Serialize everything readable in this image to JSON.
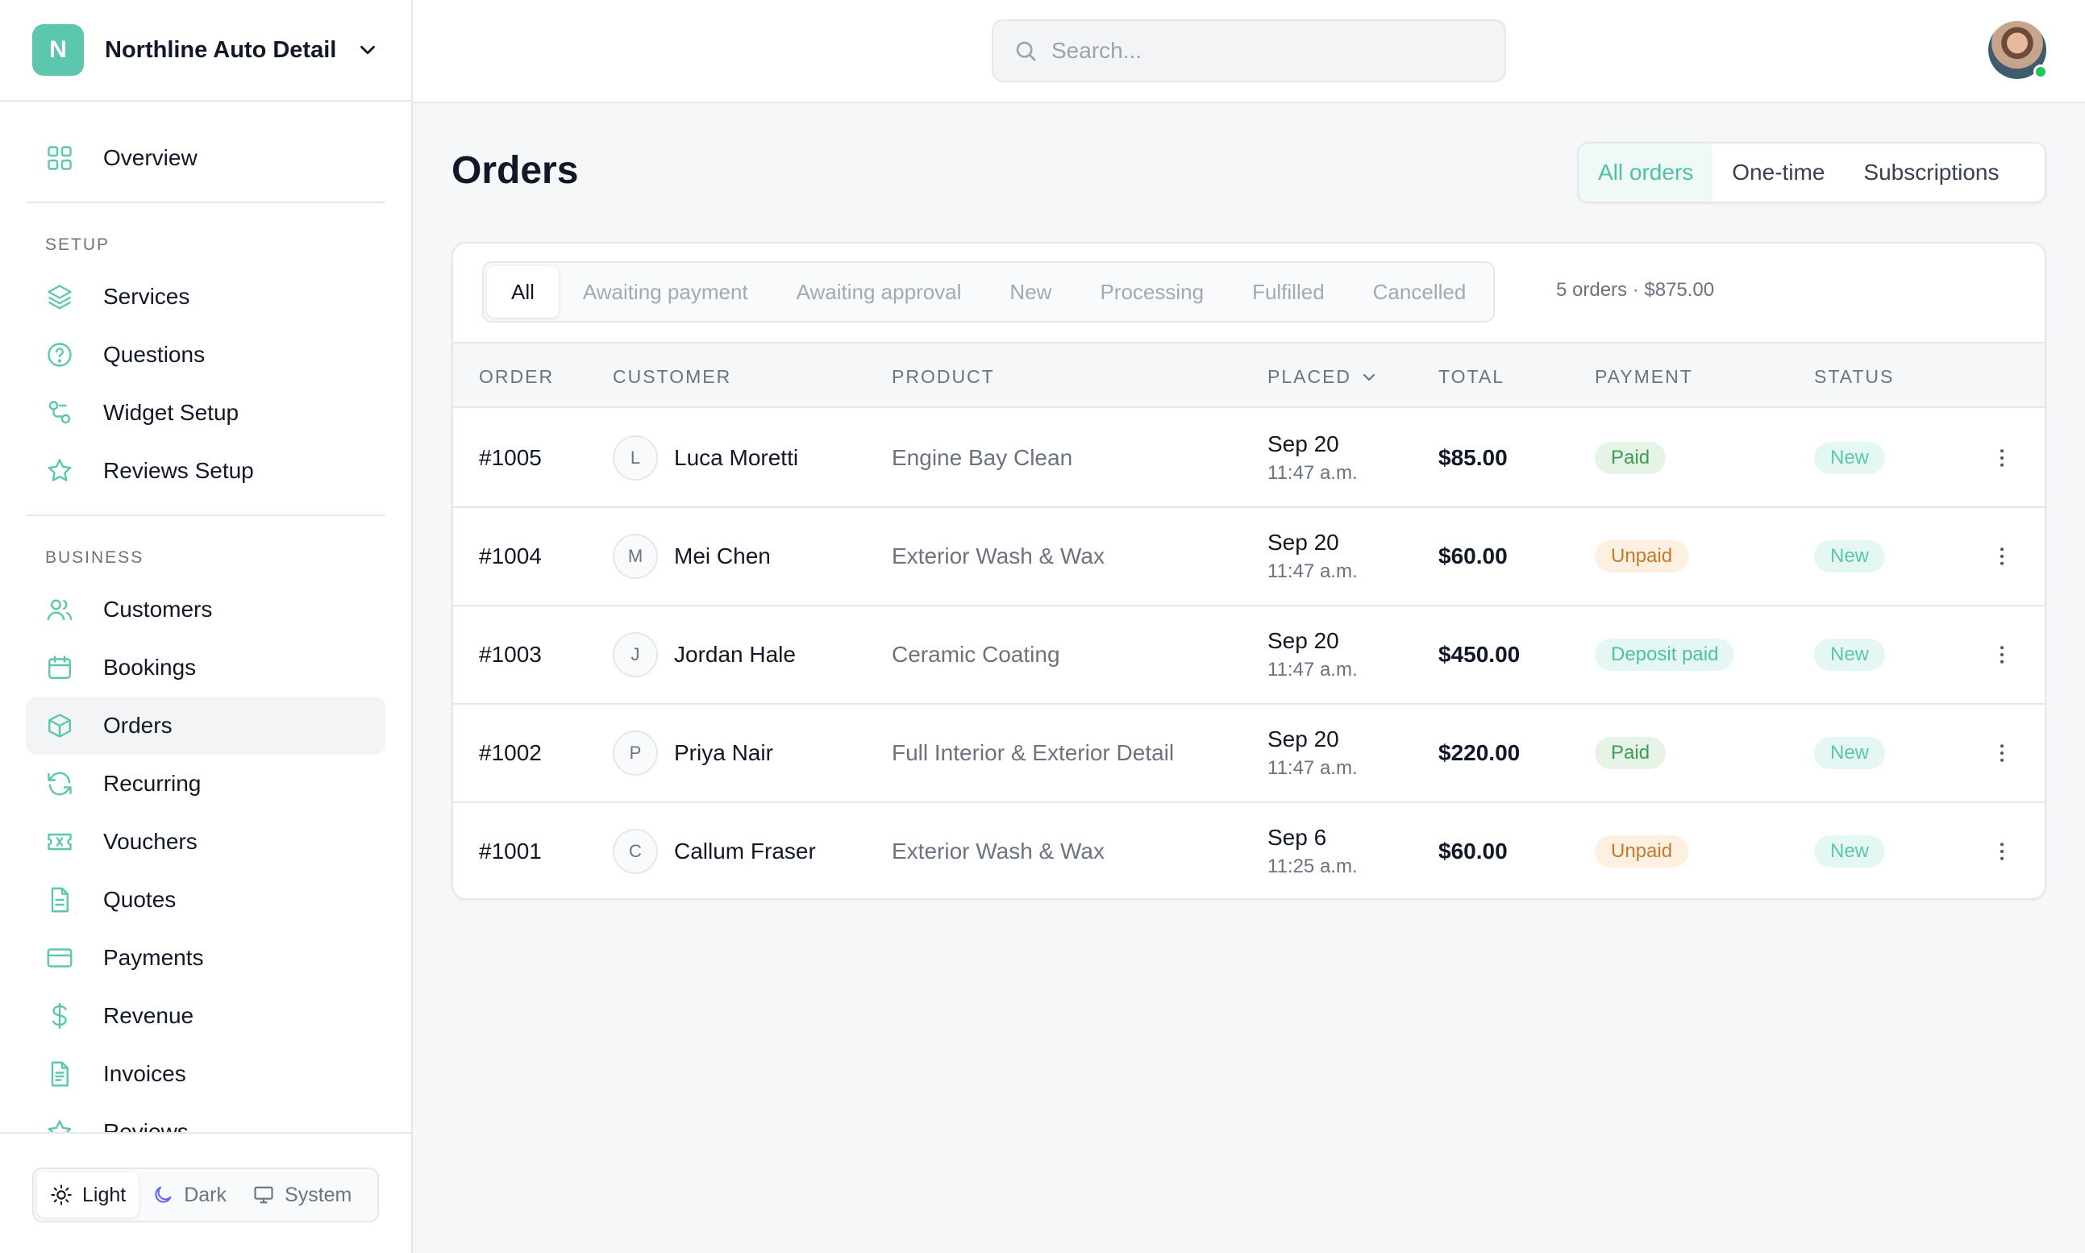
{
  "brand": {
    "initial": "N",
    "name": "Northline Auto Detail"
  },
  "search": {
    "placeholder": "Search..."
  },
  "nav": {
    "overview": "Overview",
    "setup_label": "SETUP",
    "setup_items": [
      "Services",
      "Questions",
      "Widget Setup",
      "Reviews Setup"
    ],
    "business_label": "BUSINESS",
    "business_items": [
      "Customers",
      "Bookings",
      "Orders",
      "Recurring",
      "Vouchers",
      "Quotes",
      "Payments",
      "Revenue",
      "Invoices",
      "Reviews"
    ],
    "active": "Orders"
  },
  "theme": {
    "options": [
      "Light",
      "Dark",
      "System"
    ],
    "selected": "Light"
  },
  "page": {
    "title": "Orders"
  },
  "order_type_tabs": {
    "options": [
      "All orders",
      "One-time",
      "Subscriptions"
    ],
    "selected": "All orders"
  },
  "status_filters": {
    "options": [
      "All",
      "Awaiting payment",
      "Awaiting approval",
      "New",
      "Processing",
      "Fulfilled",
      "Cancelled"
    ],
    "selected": "All"
  },
  "summary": "5 orders · $875.00",
  "table": {
    "columns": [
      "ORDER",
      "CUSTOMER",
      "PRODUCT",
      "PLACED",
      "TOTAL",
      "PAYMENT",
      "STATUS"
    ],
    "rows": [
      {
        "order": "#1005",
        "initial": "L",
        "customer": "Luca Moretti",
        "product": "Engine Bay Clean",
        "date": "Sep 20",
        "time": "11:47 a.m.",
        "total": "$85.00",
        "payment": "Paid",
        "status": "New"
      },
      {
        "order": "#1004",
        "initial": "M",
        "customer": "Mei Chen",
        "product": "Exterior Wash & Wax",
        "date": "Sep 20",
        "time": "11:47 a.m.",
        "total": "$60.00",
        "payment": "Unpaid",
        "status": "New"
      },
      {
        "order": "#1003",
        "initial": "J",
        "customer": "Jordan Hale",
        "product": "Ceramic Coating",
        "date": "Sep 20",
        "time": "11:47 a.m.",
        "total": "$450.00",
        "payment": "Deposit paid",
        "status": "New"
      },
      {
        "order": "#1002",
        "initial": "P",
        "customer": "Priya Nair",
        "product": "Full Interior & Exterior Detail",
        "date": "Sep 20",
        "time": "11:47 a.m.",
        "total": "$220.00",
        "payment": "Paid",
        "status": "New"
      },
      {
        "order": "#1001",
        "initial": "C",
        "customer": "Callum Fraser",
        "product": "Exterior Wash & Wax",
        "date": "Sep 6",
        "time": "11:25 a.m.",
        "total": "$60.00",
        "payment": "Unpaid",
        "status": "New"
      }
    ]
  },
  "colors": {
    "accent": "#5cc7ad",
    "paid": "#3f9a55",
    "unpaid": "#c77a2c",
    "online": "#22c55e"
  },
  "icons": {
    "overview": "grid-icon",
    "services": "layers-icon",
    "questions": "help-circle-icon",
    "widget_setup": "widget-icon",
    "reviews_setup": "star-icon",
    "customers": "users-icon",
    "bookings": "calendar-icon",
    "orders": "box-icon",
    "recurring": "refresh-icon",
    "vouchers": "ticket-icon",
    "quotes": "document-icon",
    "payments": "credit-card-icon",
    "revenue": "dollar-icon",
    "invoices": "invoice-icon",
    "reviews": "star-icon"
  }
}
